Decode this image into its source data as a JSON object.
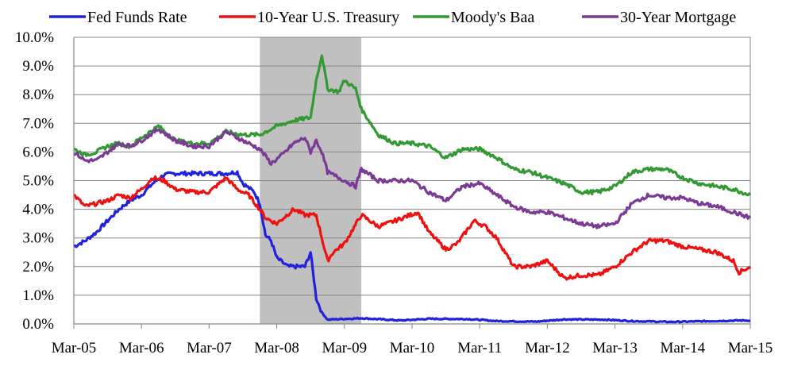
{
  "chart_data": {
    "type": "line",
    "title": "",
    "xlabel": "",
    "ylabel": "",
    "ylim": [
      0,
      10
    ],
    "xlim": [
      "2005-03",
      "2015-03"
    ],
    "grid": "horizontal",
    "legend_position": "top",
    "y_ticks": [
      "0.0%",
      "1.0%",
      "2.0%",
      "3.0%",
      "4.0%",
      "5.0%",
      "6.0%",
      "7.0%",
      "8.0%",
      "9.0%",
      "10.0%"
    ],
    "x_ticks": [
      "Mar-05",
      "Mar-06",
      "Mar-07",
      "Mar-08",
      "Mar-09",
      "Mar-10",
      "Mar-11",
      "Mar-12",
      "Mar-13",
      "Mar-14",
      "Mar-15"
    ],
    "shaded_region": {
      "start": "2007-12",
      "end": "2009-06",
      "color": "#c0c0c0"
    },
    "series": [
      {
        "name": "Fed Funds Rate",
        "color": "#2222dd",
        "points": [
          [
            "2005-03",
            2.7
          ],
          [
            "2005-05",
            2.9
          ],
          [
            "2005-07",
            3.2
          ],
          [
            "2005-09",
            3.6
          ],
          [
            "2005-11",
            4.0
          ],
          [
            "2006-01",
            4.3
          ],
          [
            "2006-03",
            4.5
          ],
          [
            "2006-05",
            4.9
          ],
          [
            "2006-07",
            5.2
          ],
          [
            "2006-09",
            5.25
          ],
          [
            "2006-12",
            5.25
          ],
          [
            "2007-03",
            5.25
          ],
          [
            "2007-06",
            5.25
          ],
          [
            "2007-08",
            5.3
          ],
          [
            "2007-09",
            4.9
          ],
          [
            "2007-11",
            4.6
          ],
          [
            "2007-12",
            4.2
          ],
          [
            "2008-01",
            3.1
          ],
          [
            "2008-02",
            2.9
          ],
          [
            "2008-03",
            2.3
          ],
          [
            "2008-05",
            2.0
          ],
          [
            "2008-07",
            2.0
          ],
          [
            "2008-08",
            2.0
          ],
          [
            "2008-09",
            2.5
          ],
          [
            "2008-10",
            0.9
          ],
          [
            "2008-11",
            0.4
          ],
          [
            "2008-12",
            0.15
          ],
          [
            "2009-06",
            0.2
          ],
          [
            "2010-01",
            0.12
          ],
          [
            "2010-06",
            0.18
          ],
          [
            "2011-01",
            0.17
          ],
          [
            "2011-06",
            0.1
          ],
          [
            "2012-01",
            0.08
          ],
          [
            "2012-06",
            0.16
          ],
          [
            "2013-01",
            0.15
          ],
          [
            "2013-06",
            0.1
          ],
          [
            "2014-01",
            0.07
          ],
          [
            "2014-06",
            0.09
          ],
          [
            "2015-01",
            0.12
          ],
          [
            "2015-03",
            0.12
          ]
        ]
      },
      {
        "name": "10-Year U.S. Treasury",
        "color": "#ee1111",
        "points": [
          [
            "2005-03",
            4.5
          ],
          [
            "2005-05",
            4.1
          ],
          [
            "2005-07",
            4.2
          ],
          [
            "2005-09",
            4.3
          ],
          [
            "2005-11",
            4.5
          ],
          [
            "2006-01",
            4.4
          ],
          [
            "2006-03",
            4.7
          ],
          [
            "2006-05",
            5.1
          ],
          [
            "2006-07",
            5.0
          ],
          [
            "2006-09",
            4.7
          ],
          [
            "2006-12",
            4.6
          ],
          [
            "2007-03",
            4.6
          ],
          [
            "2007-06",
            5.1
          ],
          [
            "2007-08",
            4.7
          ],
          [
            "2007-10",
            4.5
          ],
          [
            "2007-12",
            4.0
          ],
          [
            "2008-01",
            3.7
          ],
          [
            "2008-03",
            3.5
          ],
          [
            "2008-06",
            4.0
          ],
          [
            "2008-08",
            3.8
          ],
          [
            "2008-10",
            3.8
          ],
          [
            "2008-11",
            3.0
          ],
          [
            "2008-12",
            2.2
          ],
          [
            "2009-01",
            2.5
          ],
          [
            "2009-03",
            2.8
          ],
          [
            "2009-06",
            3.8
          ],
          [
            "2009-09",
            3.4
          ],
          [
            "2009-12",
            3.6
          ],
          [
            "2010-04",
            3.9
          ],
          [
            "2010-06",
            3.2
          ],
          [
            "2010-09",
            2.6
          ],
          [
            "2010-11",
            2.8
          ],
          [
            "2011-02",
            3.6
          ],
          [
            "2011-04",
            3.4
          ],
          [
            "2011-06",
            3.0
          ],
          [
            "2011-09",
            2.0
          ],
          [
            "2011-12",
            2.0
          ],
          [
            "2012-03",
            2.2
          ],
          [
            "2012-06",
            1.6
          ],
          [
            "2012-09",
            1.7
          ],
          [
            "2012-12",
            1.7
          ],
          [
            "2013-03",
            2.0
          ],
          [
            "2013-06",
            2.5
          ],
          [
            "2013-09",
            2.9
          ],
          [
            "2013-12",
            2.9
          ],
          [
            "2014-03",
            2.7
          ],
          [
            "2014-06",
            2.6
          ],
          [
            "2014-09",
            2.5
          ],
          [
            "2014-12",
            2.2
          ],
          [
            "2015-01",
            1.8
          ],
          [
            "2015-03",
            2.0
          ]
        ]
      },
      {
        "name": "Moody's Baa",
        "color": "#339933",
        "points": [
          [
            "2005-03",
            6.1
          ],
          [
            "2005-05",
            5.9
          ],
          [
            "2005-07",
            6.0
          ],
          [
            "2005-09",
            6.2
          ],
          [
            "2005-11",
            6.3
          ],
          [
            "2006-01",
            6.2
          ],
          [
            "2006-03",
            6.5
          ],
          [
            "2006-06",
            6.9
          ],
          [
            "2006-09",
            6.4
          ],
          [
            "2006-12",
            6.3
          ],
          [
            "2007-03",
            6.3
          ],
          [
            "2007-06",
            6.7
          ],
          [
            "2007-09",
            6.6
          ],
          [
            "2007-12",
            6.6
          ],
          [
            "2008-03",
            6.9
          ],
          [
            "2008-06",
            7.1
          ],
          [
            "2008-09",
            7.2
          ],
          [
            "2008-10",
            8.5
          ],
          [
            "2008-11",
            9.4
          ],
          [
            "2008-12",
            8.2
          ],
          [
            "2009-02",
            8.1
          ],
          [
            "2009-03",
            8.5
          ],
          [
            "2009-05",
            8.2
          ],
          [
            "2009-06",
            7.5
          ],
          [
            "2009-09",
            6.6
          ],
          [
            "2009-12",
            6.3
          ],
          [
            "2010-03",
            6.3
          ],
          [
            "2010-06",
            6.2
          ],
          [
            "2010-09",
            5.8
          ],
          [
            "2010-12",
            6.1
          ],
          [
            "2011-03",
            6.1
          ],
          [
            "2011-06",
            5.8
          ],
          [
            "2011-09",
            5.4
          ],
          [
            "2011-12",
            5.3
          ],
          [
            "2012-03",
            5.1
          ],
          [
            "2012-06",
            4.9
          ],
          [
            "2012-09",
            4.6
          ],
          [
            "2012-12",
            4.6
          ],
          [
            "2013-03",
            4.8
          ],
          [
            "2013-06",
            5.3
          ],
          [
            "2013-09",
            5.4
          ],
          [
            "2013-12",
            5.4
          ],
          [
            "2014-03",
            5.1
          ],
          [
            "2014-06",
            4.9
          ],
          [
            "2014-09",
            4.8
          ],
          [
            "2014-12",
            4.7
          ],
          [
            "2015-03",
            4.5
          ]
        ]
      },
      {
        "name": "30-Year Mortgage",
        "color": "#7b3a96",
        "points": [
          [
            "2005-03",
            6.0
          ],
          [
            "2005-05",
            5.7
          ],
          [
            "2005-07",
            5.7
          ],
          [
            "2005-09",
            6.0
          ],
          [
            "2005-11",
            6.3
          ],
          [
            "2006-01",
            6.2
          ],
          [
            "2006-03",
            6.4
          ],
          [
            "2006-06",
            6.8
          ],
          [
            "2006-09",
            6.4
          ],
          [
            "2006-12",
            6.2
          ],
          [
            "2007-03",
            6.2
          ],
          [
            "2007-06",
            6.7
          ],
          [
            "2007-09",
            6.4
          ],
          [
            "2007-12",
            6.1
          ],
          [
            "2008-02",
            5.6
          ],
          [
            "2008-04",
            5.9
          ],
          [
            "2008-06",
            6.3
          ],
          [
            "2008-08",
            6.5
          ],
          [
            "2008-09",
            6.0
          ],
          [
            "2008-10",
            6.4
          ],
          [
            "2008-11",
            6.0
          ],
          [
            "2008-12",
            5.3
          ],
          [
            "2009-03",
            5.0
          ],
          [
            "2009-05",
            4.8
          ],
          [
            "2009-06",
            5.4
          ],
          [
            "2009-09",
            5.0
          ],
          [
            "2009-12",
            5.0
          ],
          [
            "2010-03",
            5.0
          ],
          [
            "2010-06",
            4.6
          ],
          [
            "2010-09",
            4.3
          ],
          [
            "2010-12",
            4.8
          ],
          [
            "2011-03",
            4.9
          ],
          [
            "2011-06",
            4.5
          ],
          [
            "2011-09",
            4.1
          ],
          [
            "2011-12",
            3.9
          ],
          [
            "2012-03",
            3.9
          ],
          [
            "2012-06",
            3.7
          ],
          [
            "2012-09",
            3.5
          ],
          [
            "2012-12",
            3.4
          ],
          [
            "2013-03",
            3.5
          ],
          [
            "2013-06",
            4.2
          ],
          [
            "2013-09",
            4.5
          ],
          [
            "2013-12",
            4.4
          ],
          [
            "2014-03",
            4.4
          ],
          [
            "2014-06",
            4.2
          ],
          [
            "2014-09",
            4.1
          ],
          [
            "2014-12",
            3.9
          ],
          [
            "2015-03",
            3.7
          ]
        ]
      }
    ]
  }
}
